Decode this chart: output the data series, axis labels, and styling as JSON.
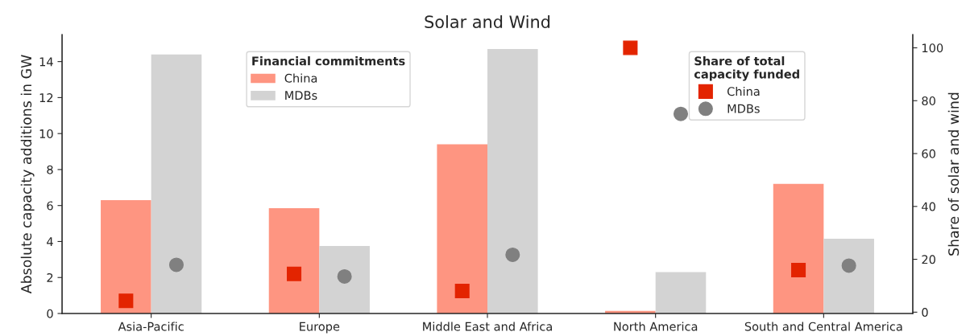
{
  "chart_data": {
    "type": "bar",
    "title": "Solar and Wind",
    "categories": [
      "Asia-Pacific",
      "Europe",
      "Middle East and Africa",
      "North America",
      "South and Central America"
    ],
    "ylabel": "Absolute capacity additions in GW",
    "y2label": "Share of solar and wind",
    "ylim": [
      0,
      15.5
    ],
    "yticks": [
      0,
      2,
      4,
      6,
      8,
      10,
      12,
      14
    ],
    "y2lim": [
      -0.5,
      105
    ],
    "y2ticks": [
      0,
      20,
      40,
      60,
      80,
      100
    ],
    "legend": "top",
    "legend_title": [
      "Financial commitments",
      "Share of total capacity funded"
    ],
    "grid": false,
    "series": [
      {
        "name": "China",
        "color": "#fe9581",
        "values": [
          6.3,
          5.85,
          9.4,
          0.15,
          7.2
        ]
      },
      {
        "name": "MDBs",
        "color": "#d3d3d3",
        "values": [
          14.4,
          3.75,
          14.7,
          2.3,
          4.15
        ]
      },
      {
        "name": "China",
        "type": "scatter",
        "axis": "y2",
        "marker": "square",
        "color": "#e32400",
        "values": [
          4.3,
          14.5,
          8,
          100,
          15.9
        ]
      },
      {
        "name": "MDBs",
        "type": "scatter",
        "axis": "y2",
        "marker": "circle",
        "color": "#808080",
        "values": [
          17.9,
          13.5,
          21.7,
          75,
          17.6
        ]
      }
    ]
  }
}
